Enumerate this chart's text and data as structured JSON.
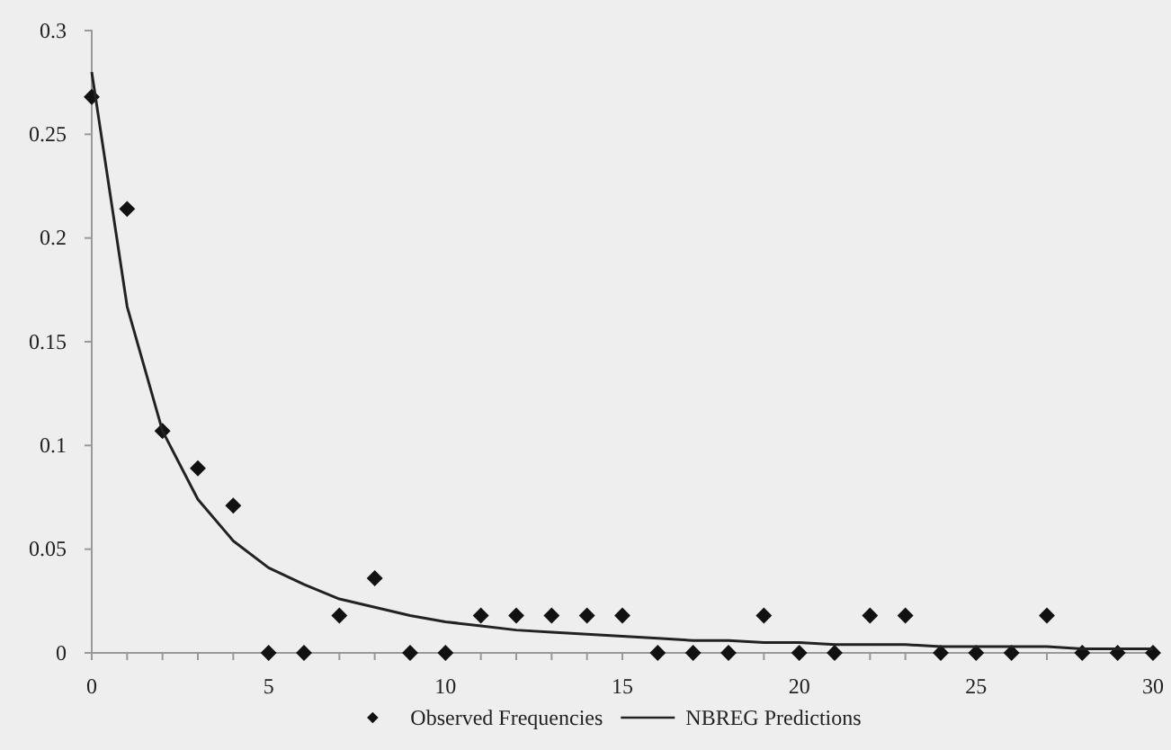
{
  "chart_data": {
    "type": "scatter",
    "x": [
      0,
      1,
      2,
      3,
      4,
      5,
      6,
      7,
      8,
      9,
      10,
      11,
      12,
      13,
      14,
      15,
      16,
      17,
      18,
      19,
      20,
      21,
      22,
      23,
      24,
      25,
      26,
      27,
      28,
      29,
      30
    ],
    "series": [
      {
        "name": "Observed Frequencies",
        "color": "#111111",
        "marker": "diamond",
        "values": [
          0.268,
          0.214,
          0.107,
          0.089,
          0.071,
          0,
          0,
          0.018,
          0.036,
          0,
          0,
          0.018,
          0.018,
          0.018,
          0.018,
          0.018,
          0,
          0,
          0,
          0.018,
          0,
          0,
          0.018,
          0.018,
          0,
          0,
          0,
          0.018,
          0,
          0,
          0
        ]
      },
      {
        "name": "NBREG Predictions",
        "type": "line",
        "color": "#222222",
        "marker": "none",
        "values": [
          0.28,
          0.167,
          0.107,
          0.074,
          0.054,
          0.041,
          0.033,
          0.026,
          0.022,
          0.018,
          0.015,
          0.013,
          0.011,
          0.01,
          0.009,
          0.008,
          0.007,
          0.006,
          0.006,
          0.005,
          0.005,
          0.004,
          0.004,
          0.004,
          0.003,
          0.003,
          0.003,
          0.003,
          0.002,
          0.002,
          0.002
        ]
      }
    ],
    "xlim": [
      0,
      30
    ],
    "xticks": [
      0,
      5,
      10,
      15,
      20,
      25,
      30
    ],
    "ylim": [
      0,
      0.3
    ],
    "yticks": [
      0,
      0.05,
      0.1,
      0.15,
      0.2,
      0.25,
      0.3
    ],
    "grid": false,
    "legend": "bottom"
  }
}
